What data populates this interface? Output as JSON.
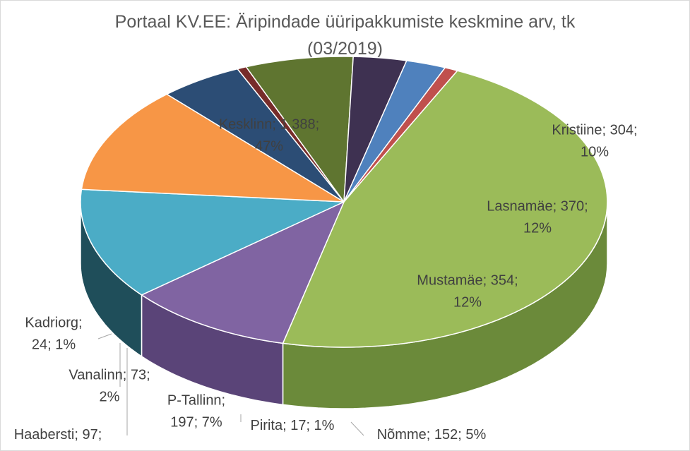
{
  "chart_data": {
    "type": "pie",
    "title": "Portaal KV.EE: Äripindade üüripakkumiste keskmine arv, tk",
    "subtitle": "(03/2019)",
    "legend": "none",
    "slices": [
      {
        "name": "Kesklinn",
        "value": 1388,
        "percent": "47%",
        "label_lines": [
          "Kesklinn; 1 388;",
          "47%"
        ],
        "color": "#9BBB59",
        "side": "#6B8A3A"
      },
      {
        "name": "Kristiine",
        "value": 304,
        "percent": "10%",
        "label_lines": [
          "Kristiine; 304;",
          "10%"
        ],
        "color": "#8064A2",
        "side": "#5A4478"
      },
      {
        "name": "Lasnamäe",
        "value": 370,
        "percent": "12%",
        "label_lines": [
          "Lasnamäe; 370;",
          "12%"
        ],
        "color": "#4BACC6",
        "side": "#1F4E5A"
      },
      {
        "name": "Mustamäe",
        "value": 354,
        "percent": "12%",
        "label_lines": [
          "Mustamäe; 354;",
          "12%"
        ],
        "color": "#F79646",
        "side": "#6B3D1C"
      },
      {
        "name": "Nõmme",
        "value": 152,
        "percent": "5%",
        "label_lines": [
          "Nõmme; 152; 5%"
        ],
        "color": "#2C4D75",
        "side": "#1B2F48"
      },
      {
        "name": "Pirita",
        "value": 17,
        "percent": "1%",
        "label_lines": [
          "Pirita; 17; 1%"
        ],
        "color": "#772C2A",
        "side": "#4D1A19"
      },
      {
        "name": "P-Tallinn",
        "value": 197,
        "percent": "7%",
        "label_lines": [
          "P-Tallinn;",
          "197; 7%"
        ],
        "color": "#5F7530",
        "side": "#46581E"
      },
      {
        "name": "Haabersti",
        "value": 97,
        "percent": "3%",
        "label_lines": [
          "Haabersti; 97;"
        ],
        "color": "#3E3151",
        "side": "#2D223B"
      },
      {
        "name": "Vanalinn",
        "value": 73,
        "percent": "2%",
        "label_lines": [
          "Vanalinn; 73;",
          "2%"
        ],
        "color": "#4F81BD",
        "side": "#2E5C94"
      },
      {
        "name": "Kadriorg",
        "value": 24,
        "percent": "1%",
        "label_lines": [
          "Kadriorg;",
          "24; 1%"
        ],
        "color": "#C0504D",
        "side": "#8C2D2A"
      }
    ]
  }
}
